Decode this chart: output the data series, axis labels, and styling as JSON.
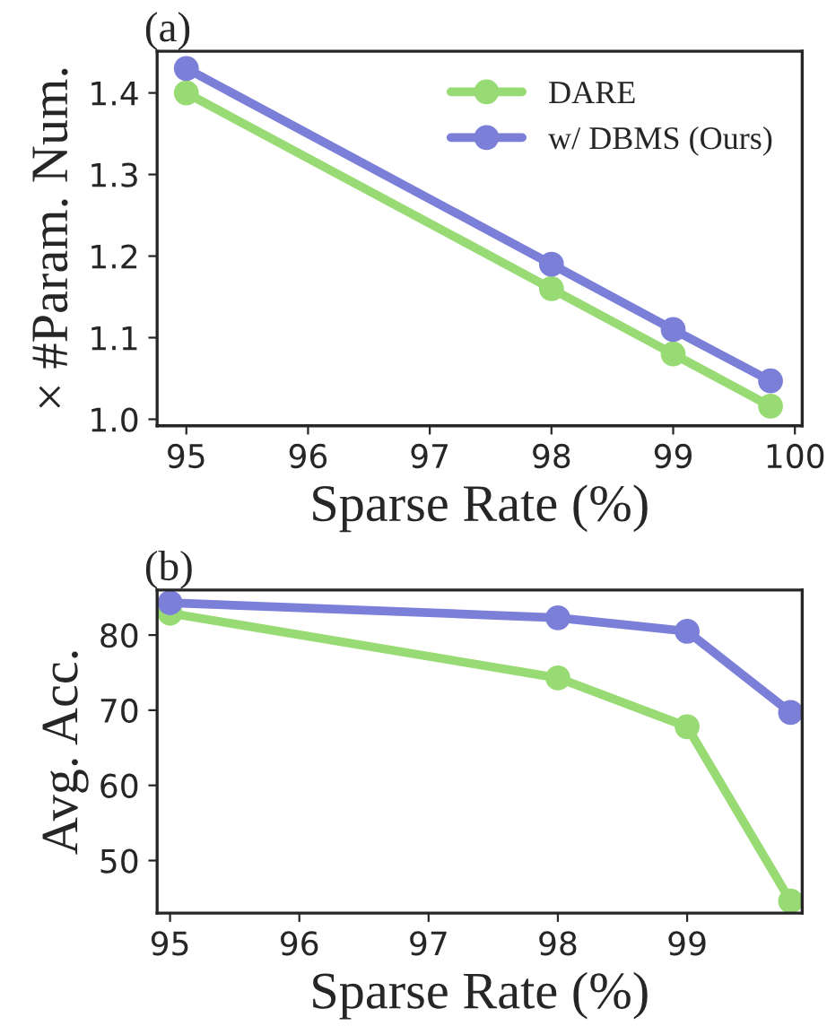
{
  "chart_data": [
    {
      "type": "line",
      "title": "(a)",
      "xlabel": "Sparse Rate (%)",
      "ylabel": "× #Param. Num.",
      "x": [
        95,
        98,
        99,
        99.8
      ],
      "series": [
        {
          "name": "DARE",
          "color": "#98db74",
          "values": [
            1.4,
            1.16,
            1.08,
            1.016
          ]
        },
        {
          "name": "w/ DBMS (Ours)",
          "color": "#7b7fd8",
          "values": [
            1.43,
            1.19,
            1.11,
            1.047
          ]
        }
      ],
      "xlim": [
        94.76,
        100.06
      ],
      "xticks": [
        95,
        96,
        97,
        98,
        99,
        100
      ],
      "ylim": [
        0.992,
        1.451
      ],
      "yticks": [
        {
          "value": 1.0,
          "label": "1.0"
        },
        1.1,
        1.2,
        1.3,
        1.4
      ],
      "marker": "circle",
      "line_style": "solid",
      "legend": "top right",
      "grid": false
    },
    {
      "type": "line",
      "title": "(b)",
      "xlabel": "Sparse Rate (%)",
      "ylabel": "Avg. Acc.",
      "x": [
        95,
        98,
        99,
        99.8
      ],
      "series": [
        {
          "color": "#98db74",
          "values": [
            82.9,
            74.3,
            67.8,
            44.6
          ]
        },
        {
          "color": "#7b7fd8",
          "values": [
            84.3,
            82.3,
            80.5,
            69.7
          ]
        }
      ],
      "xlim": [
        94.9,
        99.89
      ],
      "xticks": [
        95,
        96,
        97,
        98,
        99
      ],
      "ylim": [
        43.0,
        86.0
      ],
      "yticks": [
        50,
        60,
        70,
        80
      ],
      "marker": "circle",
      "line_style": "solid",
      "legend": false,
      "grid": false
    }
  ]
}
